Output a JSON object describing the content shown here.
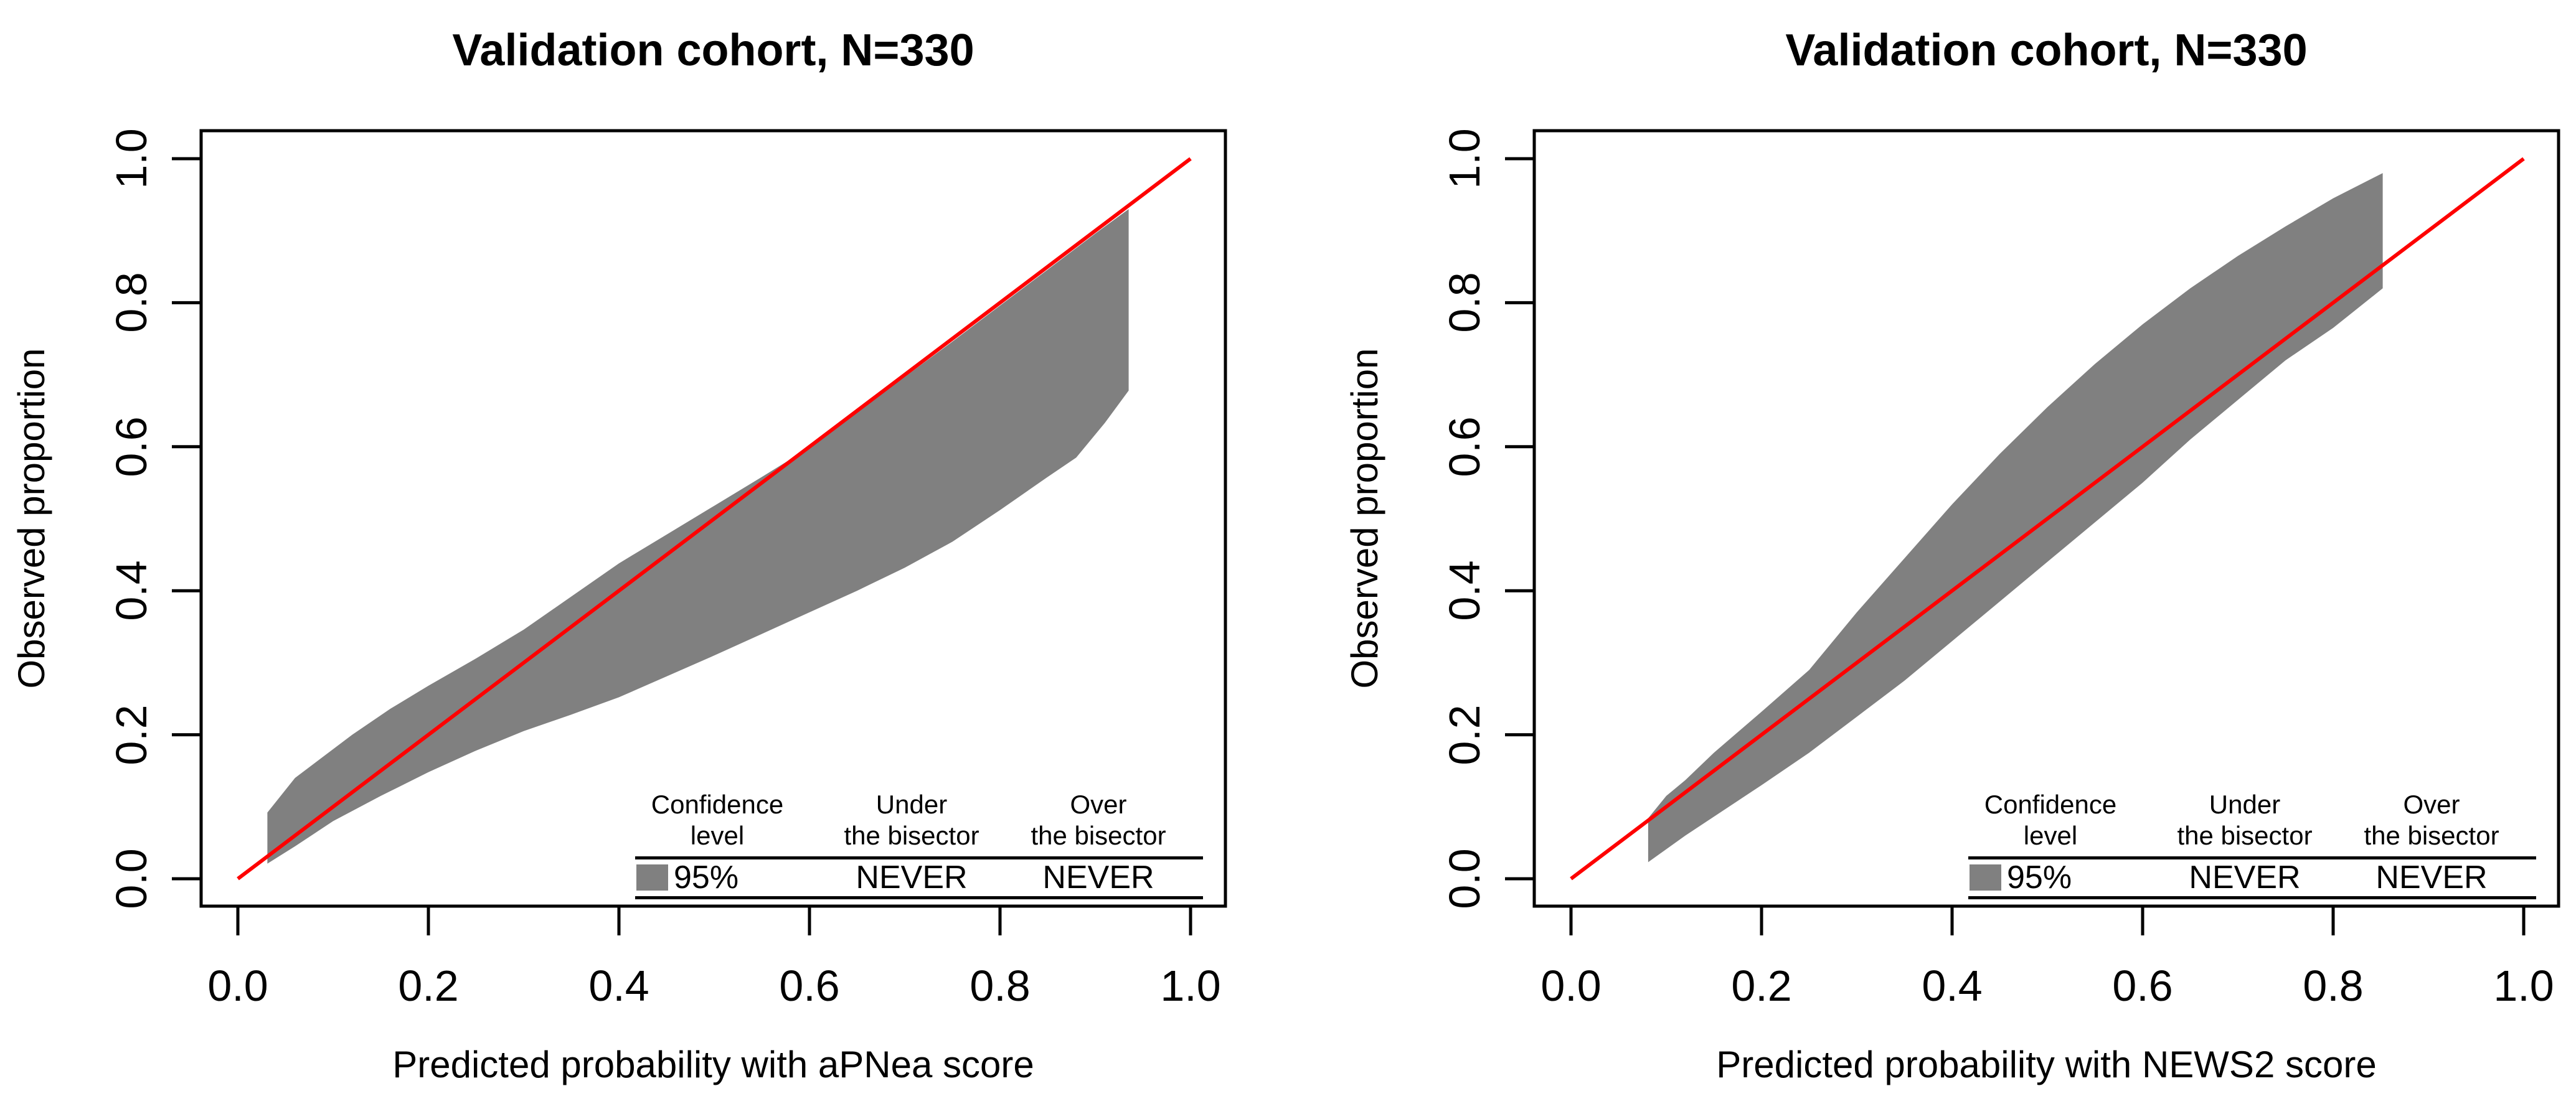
{
  "colors": {
    "background": "#ffffff",
    "belt_gray": "#808080",
    "bisector_red": "#fe0000",
    "axis_black": "#000000"
  },
  "chart_data": [
    {
      "type": "area",
      "title": "Validation cohort, N=330",
      "xlabel": "Predicted probability with aPNea score",
      "ylabel": "Observed proportion",
      "xlim": [
        0,
        1
      ],
      "ylim": [
        0,
        1
      ],
      "grid": false,
      "x_ticks": [
        "0.0",
        "0.2",
        "0.4",
        "0.6",
        "0.8",
        "1.0"
      ],
      "y_ticks": [
        "0.0",
        "0.2",
        "0.4",
        "0.6",
        "0.8",
        "1.0"
      ],
      "bisector": [
        [
          0,
          0
        ],
        [
          1,
          1
        ]
      ],
      "belt_upper": [
        [
          0.031,
          0.092
        ],
        [
          0.06,
          0.14
        ],
        [
          0.08,
          0.16
        ],
        [
          0.12,
          0.2
        ],
        [
          0.16,
          0.236
        ],
        [
          0.2,
          0.268
        ],
        [
          0.25,
          0.306
        ],
        [
          0.3,
          0.346
        ],
        [
          0.35,
          0.392
        ],
        [
          0.4,
          0.438
        ],
        [
          0.45,
          0.478
        ],
        [
          0.5,
          0.518
        ],
        [
          0.55,
          0.558
        ],
        [
          0.6,
          0.599
        ],
        [
          0.65,
          0.648
        ],
        [
          0.7,
          0.697
        ],
        [
          0.75,
          0.746
        ],
        [
          0.8,
          0.796
        ],
        [
          0.85,
          0.846
        ],
        [
          0.9,
          0.896
        ],
        [
          0.935,
          0.93
        ]
      ],
      "belt_lower": [
        [
          0.031,
          0.021
        ],
        [
          0.06,
          0.045
        ],
        [
          0.1,
          0.08
        ],
        [
          0.15,
          0.115
        ],
        [
          0.2,
          0.148
        ],
        [
          0.25,
          0.178
        ],
        [
          0.3,
          0.205
        ],
        [
          0.35,
          0.228
        ],
        [
          0.4,
          0.252
        ],
        [
          0.45,
          0.281
        ],
        [
          0.5,
          0.31
        ],
        [
          0.55,
          0.34
        ],
        [
          0.6,
          0.37
        ],
        [
          0.65,
          0.4
        ],
        [
          0.7,
          0.432
        ],
        [
          0.75,
          0.468
        ],
        [
          0.8,
          0.512
        ],
        [
          0.85,
          0.558
        ],
        [
          0.88,
          0.585
        ],
        [
          0.91,
          0.633
        ],
        [
          0.935,
          0.678
        ]
      ],
      "legend": {
        "header_confidence_l1": "Confidence",
        "header_confidence_l2": "level",
        "header_under_l1": "Under",
        "header_under_l2": "the bisector",
        "header_over_l1": "Over",
        "header_over_l2": "the bisector",
        "confidence_level": "95%",
        "under_value": "NEVER",
        "over_value": "NEVER"
      }
    },
    {
      "type": "area",
      "title": "Validation cohort, N=330",
      "xlabel": "Predicted probability with NEWS2 score",
      "ylabel": "Observed proportion",
      "xlim": [
        0,
        1
      ],
      "ylim": [
        0,
        1
      ],
      "grid": false,
      "x_ticks": [
        "0.0",
        "0.2",
        "0.4",
        "0.6",
        "0.8",
        "1.0"
      ],
      "y_ticks": [
        "0.0",
        "0.2",
        "0.4",
        "0.6",
        "0.8",
        "1.0"
      ],
      "bisector": [
        [
          0,
          0
        ],
        [
          1,
          1
        ]
      ],
      "belt_upper": [
        [
          0.081,
          0.084
        ],
        [
          0.1,
          0.115
        ],
        [
          0.12,
          0.137
        ],
        [
          0.15,
          0.175
        ],
        [
          0.2,
          0.232
        ],
        [
          0.25,
          0.29
        ],
        [
          0.3,
          0.37
        ],
        [
          0.35,
          0.445
        ],
        [
          0.4,
          0.52
        ],
        [
          0.45,
          0.59
        ],
        [
          0.5,
          0.655
        ],
        [
          0.55,
          0.715
        ],
        [
          0.6,
          0.77
        ],
        [
          0.65,
          0.82
        ],
        [
          0.7,
          0.865
        ],
        [
          0.75,
          0.906
        ],
        [
          0.8,
          0.945
        ],
        [
          0.852,
          0.98
        ]
      ],
      "belt_lower": [
        [
          0.081,
          0.023
        ],
        [
          0.12,
          0.06
        ],
        [
          0.16,
          0.095
        ],
        [
          0.2,
          0.13
        ],
        [
          0.25,
          0.175
        ],
        [
          0.3,
          0.225
        ],
        [
          0.35,
          0.275
        ],
        [
          0.4,
          0.33
        ],
        [
          0.45,
          0.385
        ],
        [
          0.5,
          0.44
        ],
        [
          0.55,
          0.495
        ],
        [
          0.6,
          0.55
        ],
        [
          0.65,
          0.61
        ],
        [
          0.7,
          0.665
        ],
        [
          0.75,
          0.72
        ],
        [
          0.8,
          0.765
        ],
        [
          0.852,
          0.82
        ]
      ],
      "legend": {
        "header_confidence_l1": "Confidence",
        "header_confidence_l2": "level",
        "header_under_l1": "Under",
        "header_under_l2": "the bisector",
        "header_over_l1": "Over",
        "header_over_l2": "the bisector",
        "confidence_level": "95%",
        "under_value": "NEVER",
        "over_value": "NEVER"
      }
    }
  ]
}
